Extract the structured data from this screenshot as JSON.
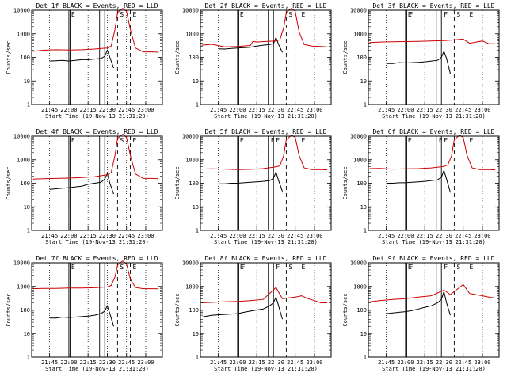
{
  "chart_data": [
    {
      "type": "line",
      "title": "Det 1f BLACK = Events, RED = LLD",
      "xlabel": "Start Time (19-Nov-13 21:31:20)",
      "ylabel": "Counts/sec",
      "ylim": [
        1,
        10000
      ],
      "y_scale": "log",
      "x_ticks": [
        "21:45",
        "22:00",
        "22:15",
        "22:30",
        "22:45",
        "23:00"
      ],
      "y_ticks": [
        "1",
        "10",
        "100",
        "1000",
        "10000"
      ],
      "markers": [
        "E",
        "S",
        "E"
      ],
      "series": [
        {
          "color": "#000000",
          "x": [
            "21:45",
            "21:50",
            "21:55",
            "22:00",
            "22:05",
            "22:10",
            "22:15",
            "22:20",
            "22:25",
            "22:28",
            "22:30",
            "22:32",
            "22:35"
          ],
          "values": [
            70,
            72,
            75,
            70,
            75,
            80,
            80,
            85,
            90,
            110,
            200,
            100,
            35
          ]
        },
        {
          "color": "#cc0000",
          "x": [
            "21:32",
            "21:40",
            "21:50",
            "22:00",
            "22:10",
            "22:20",
            "22:30",
            "22:33",
            "22:36",
            "22:38",
            "22:42",
            "22:45",
            "22:48",
            "22:52",
            "22:58",
            "23:05",
            "23:10"
          ],
          "values": [
            180,
            200,
            210,
            205,
            210,
            225,
            250,
            300,
            1500,
            8000,
            12000,
            9000,
            1500,
            250,
            170,
            170,
            165
          ]
        }
      ]
    },
    {
      "type": "line",
      "title": "Det 2f BLACK = Events, RED = LLD",
      "xlabel": "Start Time (19-Nov-13 21:31:20)",
      "ylabel": "Counts/sec",
      "ylim": [
        1,
        10000
      ],
      "y_scale": "log",
      "x_ticks": [
        "21:45",
        "22:00",
        "22:15",
        "22:30",
        "22:45",
        "23:00"
      ],
      "y_ticks": [
        "1",
        "10",
        "100",
        "1000",
        "10000"
      ],
      "markers": [
        "E",
        "S",
        "E"
      ],
      "series": [
        {
          "color": "#000000",
          "x": [
            "21:45",
            "21:50",
            "21:55",
            "22:00",
            "22:05",
            "22:10",
            "22:15",
            "22:20",
            "22:25",
            "22:28",
            "22:30",
            "22:32",
            "22:35"
          ],
          "values": [
            230,
            225,
            240,
            250,
            260,
            270,
            300,
            330,
            350,
            380,
            700,
            350,
            160
          ]
        },
        {
          "color": "#cc0000",
          "x": [
            "21:32",
            "21:40",
            "21:50",
            "22:00",
            "22:10",
            "22:12",
            "22:15",
            "22:20",
            "22:30",
            "22:33",
            "22:36",
            "22:38",
            "22:42",
            "22:45",
            "22:48",
            "22:52",
            "22:58",
            "23:05",
            "23:10"
          ],
          "values": [
            330,
            360,
            280,
            290,
            320,
            480,
            450,
            470,
            500,
            560,
            1800,
            8000,
            12000,
            9000,
            1200,
            350,
            300,
            290,
            280
          ]
        }
      ]
    },
    {
      "type": "line",
      "title": "Det 3f BLACK = Events, RED = LLD",
      "xlabel": "Start Time (19-Nov-13 21:31:20)",
      "ylabel": "Counts/sec",
      "ylim": [
        1,
        10000
      ],
      "y_scale": "log",
      "x_ticks": [
        "21:45",
        "22:00",
        "22:15",
        "22:30",
        "22:45",
        "23:00"
      ],
      "y_ticks": [
        "1",
        "10",
        "100",
        "1000",
        "10000"
      ],
      "markers": [
        "E",
        "F",
        "F",
        "S",
        "E"
      ],
      "series": [
        {
          "color": "#000000",
          "x": [
            "21:45",
            "21:50",
            "21:55",
            "22:00",
            "22:05",
            "22:10",
            "22:15",
            "22:20",
            "22:25",
            "22:28",
            "22:30",
            "22:32",
            "22:35"
          ],
          "values": [
            55,
            55,
            60,
            58,
            60,
            62,
            65,
            70,
            75,
            100,
            180,
            90,
            20
          ]
        },
        {
          "color": "#cc0000",
          "x": [
            "21:32",
            "21:40",
            "21:50",
            "22:00",
            "22:10",
            "22:20",
            "22:30",
            "22:35",
            "22:45",
            "22:50",
            "22:55",
            "23:00",
            "23:05",
            "23:10"
          ],
          "values": [
            430,
            450,
            460,
            470,
            480,
            500,
            520,
            540,
            600,
            400,
            450,
            500,
            380,
            380
          ]
        }
      ]
    },
    {
      "type": "line",
      "title": "Det 4f BLACK = Events, RED = LLD",
      "xlabel": "Start Time (19-Nov-13 21:31:20)",
      "ylabel": "Counts/sec",
      "ylim": [
        1,
        10000
      ],
      "y_scale": "log",
      "x_ticks": [
        "21:45",
        "22:00",
        "22:15",
        "22:30",
        "22:45",
        "23:00"
      ],
      "y_ticks": [
        "1",
        "10",
        "100",
        "1000",
        "10000"
      ],
      "markers": [
        "E",
        "S",
        "E"
      ],
      "series": [
        {
          "color": "#000000",
          "x": [
            "21:45",
            "21:50",
            "21:55",
            "22:00",
            "22:05",
            "22:10",
            "22:15",
            "22:20",
            "22:25",
            "22:28",
            "22:30",
            "22:32",
            "22:35"
          ],
          "values": [
            55,
            58,
            62,
            65,
            70,
            75,
            90,
            100,
            110,
            150,
            260,
            100,
            35
          ]
        },
        {
          "color": "#cc0000",
          "x": [
            "21:32",
            "21:40",
            "21:50",
            "22:00",
            "22:10",
            "22:20",
            "22:30",
            "22:33",
            "22:36",
            "22:38",
            "22:42",
            "22:45",
            "22:48",
            "22:52",
            "22:58",
            "23:05",
            "23:10"
          ],
          "values": [
            150,
            155,
            160,
            165,
            175,
            190,
            230,
            280,
            1500,
            8000,
            12000,
            9000,
            1500,
            250,
            160,
            160,
            155
          ]
        }
      ]
    },
    {
      "type": "line",
      "title": "Det 5f BLACK = Events, RED = LLD",
      "xlabel": "Start Time (19-Nov-13 21:31:20)",
      "ylabel": "Counts/sec",
      "ylim": [
        1,
        10000
      ],
      "y_scale": "log",
      "x_ticks": [
        "21:45",
        "22:00",
        "22:15",
        "22:30",
        "22:45",
        "23:00"
      ],
      "y_ticks": [
        "1",
        "10",
        "100",
        "1000",
        "10000"
      ],
      "markers": [
        "E",
        "F",
        "F",
        "E"
      ],
      "series": [
        {
          "color": "#000000",
          "x": [
            "21:45",
            "21:50",
            "21:55",
            "22:00",
            "22:05",
            "22:10",
            "22:15",
            "22:20",
            "22:25",
            "22:28",
            "22:30",
            "22:32",
            "22:35"
          ],
          "values": [
            95,
            95,
            100,
            100,
            105,
            110,
            115,
            120,
            130,
            160,
            300,
            130,
            45
          ]
        },
        {
          "color": "#cc0000",
          "x": [
            "21:32",
            "21:40",
            "21:50",
            "22:00",
            "22:10",
            "22:20",
            "22:30",
            "22:33",
            "22:36",
            "22:38",
            "22:42",
            "22:45",
            "22:48",
            "22:52",
            "22:58",
            "23:05",
            "23:10"
          ],
          "values": [
            400,
            410,
            400,
            380,
            390,
            420,
            500,
            550,
            1500,
            7000,
            11000,
            9000,
            1500,
            450,
            380,
            380,
            370
          ]
        }
      ]
    },
    {
      "type": "line",
      "title": "Det 6f BLACK = Events, RED = LLD",
      "xlabel": "Start Time (19-Nov-13 21:31:20)",
      "ylabel": "Counts/sec",
      "ylim": [
        1,
        10000
      ],
      "y_scale": "log",
      "x_ticks": [
        "21:45",
        "22:00",
        "22:15",
        "22:30",
        "22:45",
        "23:00"
      ],
      "y_ticks": [
        "1",
        "10",
        "100",
        "1000",
        "10000"
      ],
      "markers": [
        "E",
        "F",
        "F",
        "E"
      ],
      "series": [
        {
          "color": "#000000",
          "x": [
            "21:45",
            "21:50",
            "21:55",
            "22:00",
            "22:05",
            "22:10",
            "22:15",
            "22:20",
            "22:25",
            "22:28",
            "22:30",
            "22:32",
            "22:35"
          ],
          "values": [
            100,
            100,
            105,
            105,
            110,
            115,
            120,
            130,
            140,
            180,
            350,
            150,
            40
          ]
        },
        {
          "color": "#cc0000",
          "x": [
            "21:32",
            "21:40",
            "21:50",
            "22:00",
            "22:10",
            "22:20",
            "22:30",
            "22:33",
            "22:36",
            "22:38",
            "22:42",
            "22:45",
            "22:48",
            "22:52",
            "22:58",
            "23:05",
            "23:10"
          ],
          "values": [
            420,
            430,
            400,
            410,
            420,
            450,
            520,
            600,
            1500,
            7000,
            11000,
            9000,
            1500,
            450,
            380,
            380,
            370
          ]
        }
      ]
    },
    {
      "type": "line",
      "title": "Det 7f BLACK = Events, RED = LLD",
      "xlabel": "Start Time (19-Nov-13 21:31:20)",
      "ylabel": "Counts/sec",
      "ylim": [
        1,
        10000
      ],
      "y_scale": "log",
      "x_ticks": [
        "21:45",
        "22:00",
        "22:15",
        "22:30",
        "22:45",
        "23:00"
      ],
      "y_ticks": [
        "1",
        "10",
        "100",
        "1000",
        "10000"
      ],
      "markers": [
        "E",
        "S",
        "E"
      ],
      "series": [
        {
          "color": "#000000",
          "x": [
            "21:45",
            "21:50",
            "21:55",
            "22:00",
            "22:05",
            "22:10",
            "22:15",
            "22:20",
            "22:25",
            "22:28",
            "22:30",
            "22:32",
            "22:35"
          ],
          "values": [
            45,
            45,
            50,
            48,
            50,
            52,
            55,
            60,
            70,
            90,
            150,
            70,
            20
          ]
        },
        {
          "color": "#cc0000",
          "x": [
            "21:32",
            "21:40",
            "21:50",
            "22:00",
            "22:10",
            "22:20",
            "22:30",
            "22:33",
            "22:36",
            "22:38",
            "22:42",
            "22:45",
            "22:48",
            "22:52",
            "22:58",
            "23:05",
            "23:10"
          ],
          "values": [
            800,
            820,
            830,
            850,
            860,
            880,
            950,
            1100,
            2500,
            8000,
            12000,
            9000,
            2000,
            900,
            800,
            800,
            790
          ]
        }
      ]
    },
    {
      "type": "line",
      "title": "Det 8f BLACK = Events, RED = LLD",
      "xlabel": "Start Time (19-Nov-13 21:31:20)",
      "ylabel": "Counts/sec",
      "ylim": [
        1,
        10000
      ],
      "y_scale": "log",
      "x_ticks": [
        "21:45",
        "22:00",
        "22:15",
        "22:30",
        "22:45",
        "23:00"
      ],
      "y_ticks": [
        "1",
        "10",
        "100",
        "1000",
        "10000"
      ],
      "markers": [
        "E",
        "F",
        "F",
        "S",
        "E"
      ],
      "series": [
        {
          "color": "#000000",
          "x": [
            "21:32",
            "21:40",
            "21:50",
            "22:00",
            "22:05",
            "22:10",
            "22:15",
            "22:20",
            "22:25",
            "22:28",
            "22:30",
            "22:32",
            "22:35"
          ],
          "values": [
            50,
            60,
            65,
            70,
            80,
            90,
            100,
            110,
            150,
            200,
            350,
            150,
            40
          ]
        },
        {
          "color": "#cc0000",
          "x": [
            "21:32",
            "21:40",
            "21:50",
            "22:00",
            "22:10",
            "22:20",
            "22:30",
            "22:35",
            "22:45",
            "22:50",
            "22:55",
            "23:00",
            "23:05",
            "23:10"
          ],
          "values": [
            200,
            210,
            220,
            230,
            250,
            280,
            900,
            300,
            350,
            400,
            300,
            250,
            200,
            200
          ]
        }
      ]
    },
    {
      "type": "line",
      "title": "Det 9f BLACK = Events, RED = LLD",
      "xlabel": "Start Time (19-Nov-13 21:31:20)",
      "ylabel": "Counts/sec",
      "ylim": [
        1,
        10000
      ],
      "y_scale": "log",
      "x_ticks": [
        "21:45",
        "22:00",
        "22:15",
        "22:30",
        "22:45",
        "23:00"
      ],
      "y_ticks": [
        "1",
        "10",
        "100",
        "1000",
        "10000"
      ],
      "markers": [
        "E",
        "F",
        "F",
        "S",
        "E"
      ],
      "series": [
        {
          "color": "#000000",
          "x": [
            "21:45",
            "21:50",
            "21:55",
            "22:00",
            "22:05",
            "22:10",
            "22:15",
            "22:20",
            "22:25",
            "22:28",
            "22:30",
            "22:32",
            "22:35"
          ],
          "values": [
            70,
            75,
            80,
            85,
            95,
            110,
            130,
            150,
            200,
            280,
            600,
            200,
            60
          ]
        },
        {
          "color": "#cc0000",
          "x": [
            "21:32",
            "21:40",
            "21:50",
            "22:00",
            "22:10",
            "22:20",
            "22:30",
            "22:35",
            "22:45",
            "22:50",
            "22:55",
            "23:00",
            "23:05",
            "23:10"
          ],
          "values": [
            220,
            250,
            280,
            300,
            350,
            400,
            700,
            450,
            1200,
            500,
            450,
            400,
            350,
            320
          ]
        }
      ]
    }
  ]
}
